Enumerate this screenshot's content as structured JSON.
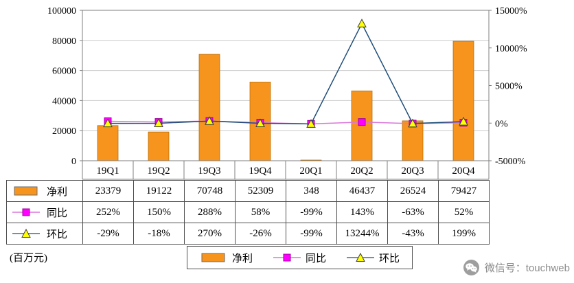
{
  "chart_data": {
    "type": "bar",
    "subtype": "combo-bar-line",
    "title": "",
    "categories": [
      "19Q1",
      "19Q2",
      "19Q3",
      "19Q4",
      "20Q1",
      "20Q2",
      "20Q3",
      "20Q4"
    ],
    "series": [
      {
        "name": "净利",
        "chart_type": "bar",
        "axis": "left",
        "color": "#F7941E",
        "marker": "bar",
        "values": [
          23379,
          19122,
          70748,
          52309,
          348,
          46437,
          26524,
          79427
        ]
      },
      {
        "name": "同比",
        "chart_type": "line",
        "axis": "right",
        "color": "#FF00FF",
        "line_color": "#D977D9",
        "marker": "square",
        "values": [
          252,
          150,
          288,
          58,
          -99,
          143,
          -63,
          52
        ]
      },
      {
        "name": "环比",
        "chart_type": "line",
        "axis": "right",
        "color": "#FFFF00",
        "line_color": "#1F4E79",
        "marker": "triangle",
        "values": [
          -29,
          -18,
          270,
          -26,
          -99,
          13244,
          -43,
          199
        ]
      }
    ],
    "left_axis": {
      "min": 0,
      "max": 100000,
      "ticks": [
        0,
        20000,
        40000,
        60000,
        80000,
        100000
      ],
      "suffix": ""
    },
    "right_axis": {
      "min": -5000,
      "max": 15000,
      "ticks": [
        -5000,
        0,
        5000,
        10000,
        15000
      ],
      "suffix": "%"
    },
    "grid": true,
    "legend_position": "bottom"
  },
  "table": {
    "rows": [
      {
        "label": "净利",
        "cells": [
          "23379",
          "19122",
          "70748",
          "52309",
          "348",
          "46437",
          "26524",
          "79427"
        ]
      },
      {
        "label": "同比",
        "cells": [
          "252%",
          "150%",
          "288%",
          "58%",
          "-99%",
          "143%",
          "-63%",
          "52%"
        ]
      },
      {
        "label": "环比",
        "cells": [
          "-29%",
          "-18%",
          "270%",
          "-26%",
          "-99%",
          "13244%",
          "-43%",
          "199%"
        ]
      }
    ]
  },
  "footer": {
    "unit_label": "(百万元)",
    "legend_items": [
      "净利",
      "同比",
      "环比"
    ],
    "watermark_text": "微信号：touchweb"
  },
  "colors": {
    "bar_fill": "#F7941E",
    "bar_stroke": "#B36B00",
    "yoy_marker": "#FF00FF",
    "yoy_marker_stroke": "#A300A3",
    "yoy_line": "#D977D9",
    "qoq_marker": "#FFFF00",
    "qoq_marker_stroke": "#404040",
    "qoq_line": "#1F4E79",
    "grid_line": "#C9C9C9",
    "axis_line": "#7F7F7F",
    "table_border": "#4D4D4D",
    "watermark_gray": "#8C8C8C"
  }
}
